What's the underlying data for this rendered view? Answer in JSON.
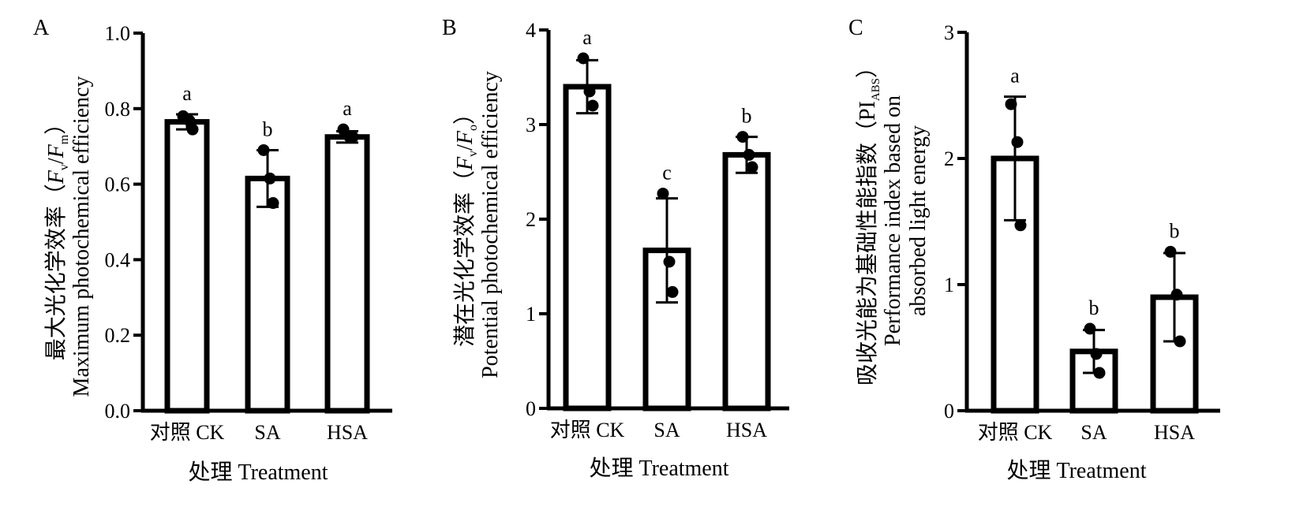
{
  "chart_data": [
    {
      "panel": "A",
      "type": "bar",
      "categories": [
        "对照 CK",
        "SA",
        "HSA"
      ],
      "values": [
        0.765,
        0.615,
        0.725
      ],
      "error": [
        0.02,
        0.075,
        0.015
      ],
      "points": [
        [
          0.78,
          0.768,
          0.745
        ],
        [
          0.69,
          0.615,
          0.55
        ],
        [
          0.745,
          0.725,
          0.725
        ]
      ],
      "significance": [
        "a",
        "b",
        "a"
      ],
      "xlabel": "处理 Treatment",
      "ylabel": "最大光化学效率（Fv/Fm）",
      "ylabel_en": "Maximum photochemical efficiency",
      "ylim": [
        0,
        1.0
      ],
      "yticks": [
        "0.0",
        "0.2",
        "0.4",
        "0.6",
        "0.8",
        "1.0"
      ]
    },
    {
      "panel": "B",
      "type": "bar",
      "categories": [
        "对照 CK",
        "SA",
        "HSA"
      ],
      "values": [
        3.4,
        1.67,
        2.68
      ],
      "error": [
        0.28,
        0.55,
        0.19
      ],
      "points": [
        [
          3.7,
          3.35,
          3.2
        ],
        [
          2.27,
          1.55,
          1.23
        ],
        [
          2.87,
          2.68,
          2.55
        ]
      ],
      "significance": [
        "a",
        "c",
        "b"
      ],
      "xlabel": "处理 Treatment",
      "ylabel": "潜在光化学效率（Fv/Fo）",
      "ylabel_en": "Potential photochemical efficiency",
      "ylim": [
        0,
        4
      ],
      "yticks": [
        "0",
        "1",
        "2",
        "3",
        "4"
      ]
    },
    {
      "panel": "C",
      "type": "bar",
      "categories": [
        "对照 CK",
        "SA",
        "HSA"
      ],
      "values": [
        2.0,
        0.47,
        0.9
      ],
      "error": [
        0.49,
        0.17,
        0.35
      ],
      "points": [
        [
          2.43,
          2.13,
          1.47
        ],
        [
          0.65,
          0.45,
          0.3
        ],
        [
          1.26,
          0.92,
          0.55
        ]
      ],
      "significance": [
        "a",
        "b",
        "b"
      ],
      "xlabel": "处理 Treatment",
      "ylabel": "吸收光能为基础性能指数（PIABS）",
      "ylabel_en_line1": "Performance index based on",
      "ylabel_en_line2": "absorbed light energy",
      "ylim": [
        0,
        3
      ],
      "yticks": [
        "0",
        "1",
        "2",
        "3"
      ]
    }
  ]
}
